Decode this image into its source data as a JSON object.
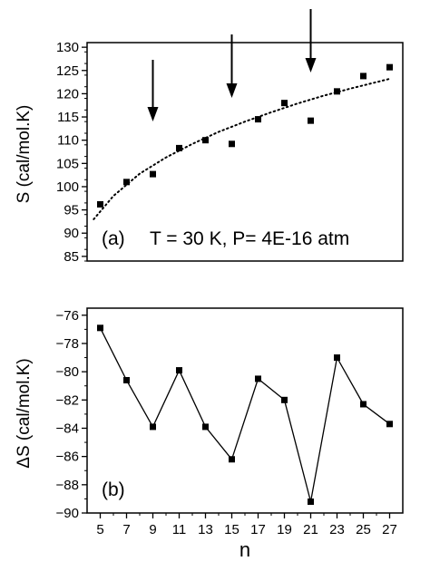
{
  "chart_data": [
    {
      "type": "scatter",
      "panel_label": "(a)",
      "annotation": "T = 30 K, P= 4E-16 atm",
      "ylabel": "S (cal/mol.K)",
      "xlabel": "",
      "xlim": [
        4,
        28
      ],
      "ylim": [
        84,
        131
      ],
      "yticks": [
        85,
        90,
        95,
        100,
        105,
        110,
        115,
        120,
        125,
        130
      ],
      "series": [
        {
          "x": [
            5,
            7,
            9,
            11,
            13,
            15,
            17,
            19,
            21,
            23,
            25,
            27
          ],
          "values": [
            96.2,
            101.0,
            102.7,
            108.3,
            110.0,
            109.2,
            114.5,
            118.0,
            114.2,
            120.5,
            123.8,
            125.7
          ]
        }
      ],
      "trendline": {
        "style": "dotted",
        "x": [
          4.5,
          6,
          8,
          10,
          12,
          14,
          16,
          18,
          20,
          22,
          24,
          26,
          27
        ],
        "values": [
          93.0,
          98.0,
          102.8,
          106.3,
          109.2,
          111.8,
          114.0,
          116.0,
          117.9,
          119.6,
          121.1,
          122.5,
          123.2
        ]
      },
      "arrows_at_x": [
        9,
        15,
        21
      ],
      "grid": false
    },
    {
      "type": "line",
      "panel_label": "(b)",
      "ylabel": "ΔS (cal/mol.K)",
      "xlabel": "n",
      "xlim": [
        4,
        28
      ],
      "ylim": [
        -90,
        -75.5
      ],
      "xticks": [
        5,
        7,
        9,
        11,
        13,
        15,
        17,
        19,
        21,
        23,
        25,
        27
      ],
      "yticks": [
        -76,
        -78,
        -80,
        -82,
        -84,
        -86,
        -88,
        -90
      ],
      "series": [
        {
          "x": [
            5,
            7,
            9,
            11,
            13,
            15,
            17,
            19,
            21,
            23,
            25,
            27
          ],
          "values": [
            -76.9,
            -80.6,
            -83.9,
            -79.9,
            -83.9,
            -86.2,
            -80.5,
            -82.0,
            -89.2,
            -79.0,
            -82.3,
            -83.7
          ]
        }
      ],
      "grid": false
    }
  ]
}
